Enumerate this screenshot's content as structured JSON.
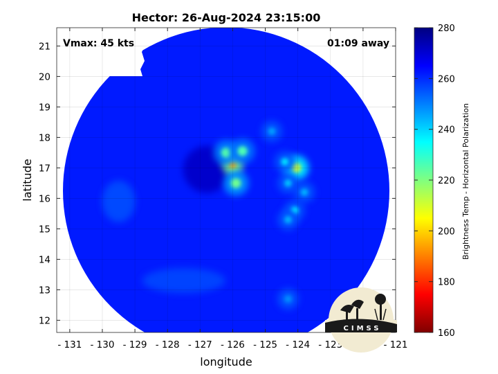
{
  "chart_data": {
    "type": "heatmap",
    "title": "Hector: 26-Aug-2024 23:15:00",
    "annotations": {
      "left": "Vmax: 45 kts",
      "right": "01:09 away"
    },
    "xlabel": "longitude",
    "ylabel": "latitude",
    "xlim": [
      -131.4,
      -121.0
    ],
    "ylim": [
      11.6,
      21.6
    ],
    "xticks": [
      -131,
      -130,
      -129,
      -128,
      -127,
      -126,
      -125,
      -124,
      -123,
      -122,
      -121
    ],
    "yticks": [
      12,
      13,
      14,
      15,
      16,
      17,
      18,
      19,
      20,
      21
    ],
    "grid": true,
    "colorbar": {
      "label": "Brightness Temp - Horizontal Polarization",
      "range": [
        160,
        280
      ],
      "ticks": [
        160,
        180,
        200,
        220,
        240,
        260,
        280
      ],
      "colormap": "jet"
    },
    "swath": {
      "center_lon": -126.2,
      "center_lat": 16.25,
      "background_temp": 262
    },
    "features": [
      {
        "lon": -126.0,
        "lat": 17.1,
        "temp": 195
      },
      {
        "lon": -125.9,
        "lat": 16.5,
        "temp": 222
      },
      {
        "lon": -126.2,
        "lat": 17.5,
        "temp": 225
      },
      {
        "lon": -125.7,
        "lat": 17.55,
        "temp": 226
      },
      {
        "lon": -124.05,
        "lat": 17.0,
        "temp": 212
      },
      {
        "lon": -124.4,
        "lat": 17.2,
        "temp": 238
      },
      {
        "lon": -124.3,
        "lat": 16.5,
        "temp": 242
      },
      {
        "lon": -123.8,
        "lat": 16.2,
        "temp": 244
      },
      {
        "lon": -124.1,
        "lat": 15.6,
        "temp": 236
      },
      {
        "lon": -124.3,
        "lat": 15.3,
        "temp": 244
      },
      {
        "lon": -124.8,
        "lat": 18.2,
        "temp": 246
      },
      {
        "lon": -124.3,
        "lat": 12.7,
        "temp": 248
      }
    ],
    "logo": "CIMSS"
  }
}
